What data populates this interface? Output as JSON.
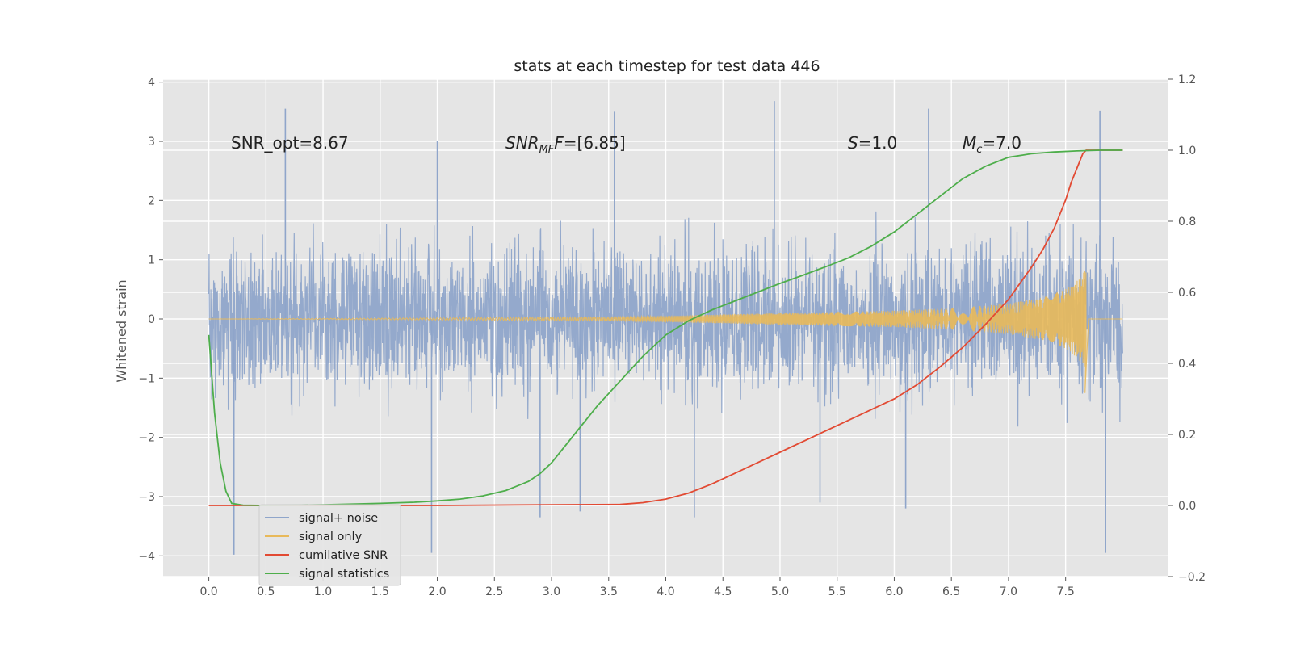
{
  "chart_data": {
    "type": "line",
    "title": "stats at each timestep for test data 446",
    "ylabel": "Whitened strain",
    "xlabel": "",
    "xlim": [
      -0.4,
      8.4
    ],
    "ylim": [
      -4.35,
      4.05
    ],
    "y2lim": [
      -0.2,
      1.2
    ],
    "xticks": [
      "0.0",
      "0.5",
      "1.0",
      "1.5",
      "2.0",
      "2.5",
      "3.0",
      "3.5",
      "4.0",
      "4.5",
      "5.0",
      "5.5",
      "6.0",
      "6.5",
      "7.0",
      "7.5"
    ],
    "yticks": [
      "4",
      "3",
      "2",
      "1",
      "0",
      "−1",
      "−2",
      "−3",
      "−4"
    ],
    "y2ticks": [
      "1.2",
      "1.0",
      "0.8",
      "0.6",
      "0.4",
      "0.2",
      "0.0",
      "−0.2"
    ],
    "grid": true,
    "legend_position": "lower-left",
    "annotations": {
      "snr_opt": "SNR_opt=8.67",
      "snr_mf_main": "SNR",
      "snr_mf_sub": "MF",
      "snr_mf_value": "=[6.85]",
      "s_var": "S",
      "s_value": "=1.0",
      "mc_var": "M",
      "mc_sub": "c",
      "mc_value": "=7.0"
    },
    "series": [
      {
        "name": "signal+ noise",
        "color": "#8fa5ca",
        "axis": "left",
        "t_start": 0.0,
        "t_end": 8.0,
        "amplitude_envelope": [
          -2.8,
          2.6
        ],
        "peaks": [
          [
            0.67,
            3.55
          ],
          [
            2.0,
            3.0
          ],
          [
            3.55,
            3.5
          ],
          [
            4.95,
            3.68
          ],
          [
            6.3,
            3.55
          ],
          [
            7.8,
            3.52
          ],
          [
            0.22,
            -3.98
          ],
          [
            1.95,
            -3.95
          ],
          [
            2.9,
            -3.35
          ],
          [
            3.25,
            -3.25
          ],
          [
            4.25,
            -3.35
          ],
          [
            5.35,
            -3.1
          ],
          [
            6.1,
            -3.2
          ],
          [
            7.85,
            -3.95
          ]
        ]
      },
      {
        "name": "signal only",
        "color": "#e8b95a",
        "axis": "left",
        "t_start": 0.0,
        "t_end": 7.68,
        "envelope": [
          [
            0.0,
            0.0
          ],
          [
            3.5,
            0.03
          ],
          [
            4.0,
            0.05
          ],
          [
            5.0,
            0.1
          ],
          [
            6.0,
            0.14
          ],
          [
            6.5,
            0.18
          ],
          [
            7.0,
            0.26
          ],
          [
            7.3,
            0.36
          ],
          [
            7.5,
            0.5
          ],
          [
            7.6,
            0.65
          ],
          [
            7.68,
            0.85
          ]
        ],
        "final_dip": -1.25
      },
      {
        "name": "cumilative SNR",
        "color": "#e24a33",
        "axis": "right",
        "x": [
          0.0,
          1.0,
          2.0,
          3.0,
          3.6,
          3.8,
          4.0,
          4.2,
          4.4,
          4.6,
          4.8,
          5.0,
          5.2,
          5.4,
          5.6,
          5.8,
          6.0,
          6.2,
          6.4,
          6.6,
          6.8,
          7.0,
          7.2,
          7.3,
          7.4,
          7.5,
          7.55,
          7.6,
          7.65,
          7.68,
          7.7,
          8.0
        ],
        "y": [
          0.0,
          0.0,
          0.0,
          0.002,
          0.003,
          0.008,
          0.018,
          0.035,
          0.06,
          0.09,
          0.12,
          0.15,
          0.18,
          0.21,
          0.24,
          0.27,
          0.3,
          0.34,
          0.39,
          0.445,
          0.51,
          0.58,
          0.67,
          0.72,
          0.78,
          0.86,
          0.91,
          0.95,
          0.99,
          1.0,
          1.0,
          1.0
        ]
      },
      {
        "name": "signal statistics",
        "color": "#4eae4b",
        "axis": "right",
        "x": [
          0.0,
          0.05,
          0.1,
          0.15,
          0.2,
          0.3,
          0.5,
          1.0,
          1.5,
          1.8,
          2.0,
          2.2,
          2.4,
          2.6,
          2.8,
          2.9,
          3.0,
          3.2,
          3.4,
          3.6,
          3.8,
          4.0,
          4.2,
          4.4,
          4.6,
          4.8,
          5.0,
          5.2,
          5.4,
          5.6,
          5.8,
          6.0,
          6.2,
          6.4,
          6.6,
          6.8,
          7.0,
          7.2,
          7.4,
          7.6,
          7.8,
          8.0
        ],
        "y": [
          0.48,
          0.26,
          0.12,
          0.04,
          0.006,
          0.001,
          0.0,
          0.002,
          0.006,
          0.009,
          0.013,
          0.018,
          0.027,
          0.042,
          0.068,
          0.09,
          0.12,
          0.2,
          0.28,
          0.35,
          0.42,
          0.48,
          0.52,
          0.55,
          0.575,
          0.6,
          0.625,
          0.648,
          0.672,
          0.697,
          0.73,
          0.77,
          0.82,
          0.87,
          0.92,
          0.955,
          0.98,
          0.99,
          0.995,
          0.998,
          1.0,
          1.0
        ]
      }
    ]
  }
}
